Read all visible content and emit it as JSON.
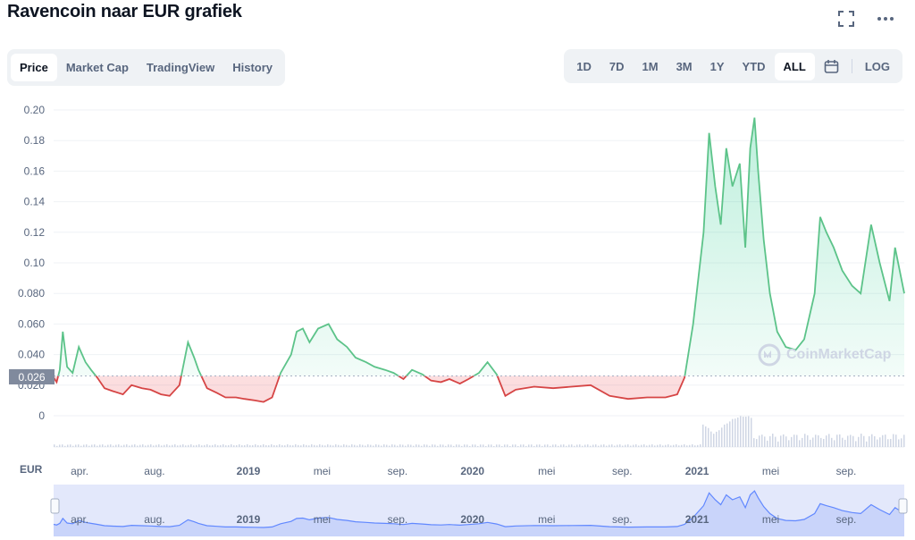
{
  "header": {
    "title": "Ravencoin naar EUR grafiek"
  },
  "icons": {
    "fullscreen": "fullscreen-icon",
    "more": "more-dots-icon",
    "calendar": "calendar-icon",
    "logo": "coinmarketcap-logo-icon"
  },
  "tabs": [
    "Price",
    "Market Cap",
    "TradingView",
    "History"
  ],
  "active_tab": "Price",
  "ranges": [
    "1D",
    "7D",
    "1M",
    "3M",
    "1Y",
    "YTD",
    "ALL"
  ],
  "active_range": "ALL",
  "log_label": "LOG",
  "currency_label": "EUR",
  "watermark_text": "CoinMarketCap",
  "current_price_tag": "0.026",
  "colors": {
    "up": "#16c784",
    "down": "#ea3943",
    "line_up": "#5cc389",
    "line_down": "#d64545",
    "grid": "#eff2f5",
    "axis_text": "#58667e",
    "nav_fill": "#e3e8fb",
    "nav_line": "#6188ff"
  },
  "chart_data": {
    "type": "line",
    "title": "",
    "xlabel": "",
    "ylabel": "",
    "ylim": [
      0,
      0.2
    ],
    "grid": true,
    "baseline": 0.026,
    "yticks": [
      0,
      0.02,
      0.04,
      0.06,
      0.08,
      0.1,
      0.12,
      0.14,
      0.16,
      0.18,
      0.2
    ],
    "ytick_labels": [
      "0",
      "0.020",
      "0.040",
      "0.060",
      "0.080",
      "0.10",
      "0.12",
      "0.14",
      "0.16",
      "0.18",
      "0.20"
    ],
    "xticks": [
      "apr.",
      "aug.",
      "2019",
      "mei",
      "sep.",
      "2020",
      "mei",
      "sep.",
      "2021",
      "mei",
      "sep."
    ],
    "xtick_dates": [
      "2018-04-01",
      "2018-08-01",
      "2019-01-01",
      "2019-05-01",
      "2019-09-01",
      "2020-01-01",
      "2020-05-01",
      "2020-09-01",
      "2021-01-01",
      "2021-05-01",
      "2021-09-01"
    ],
    "xlim": [
      "2018-03-10",
      "2021-12-25"
    ],
    "series": [
      {
        "dates": [
          "2018-03-10",
          "2018-03-15",
          "2018-03-20",
          "2018-03-25",
          "2018-04-01",
          "2018-04-10",
          "2018-04-20",
          "2018-05-01",
          "2018-05-10",
          "2018-05-20",
          "2018-06-01",
          "2018-06-15",
          "2018-07-01",
          "2018-07-15",
          "2018-08-01",
          "2018-08-15",
          "2018-09-01",
          "2018-09-15",
          "2018-10-01",
          "2018-10-15",
          "2018-10-25",
          "2018-11-01",
          "2018-11-15",
          "2018-12-01",
          "2018-12-15",
          "2019-01-01",
          "2019-01-15",
          "2019-02-01",
          "2019-02-15",
          "2019-03-01",
          "2019-03-15",
          "2019-04-01",
          "2019-04-10",
          "2019-04-20",
          "2019-05-01",
          "2019-05-15",
          "2019-06-01",
          "2019-06-15",
          "2019-07-01",
          "2019-07-15",
          "2019-08-01",
          "2019-08-15",
          "2019-09-01",
          "2019-09-15",
          "2019-10-01",
          "2019-10-15",
          "2019-11-01",
          "2019-11-15",
          "2019-12-01",
          "2019-12-15",
          "2020-01-01",
          "2020-01-15",
          "2020-02-01",
          "2020-02-15",
          "2020-03-01",
          "2020-03-15",
          "2020-04-01",
          "2020-05-01",
          "2020-06-01",
          "2020-07-01",
          "2020-08-01",
          "2020-09-01",
          "2020-10-01",
          "2020-11-01",
          "2020-12-01",
          "2020-12-20",
          "2021-01-01",
          "2021-01-15",
          "2021-02-01",
          "2021-02-10",
          "2021-02-20",
          "2021-03-01",
          "2021-03-10",
          "2021-03-20",
          "2021-04-01",
          "2021-04-10",
          "2021-04-18",
          "2021-04-25",
          "2021-05-01",
          "2021-05-10",
          "2021-05-20",
          "2021-06-01",
          "2021-06-15",
          "2021-07-01",
          "2021-07-15",
          "2021-08-01",
          "2021-08-10",
          "2021-08-20",
          "2021-09-01",
          "2021-09-15",
          "2021-10-01",
          "2021-10-15",
          "2021-11-01",
          "2021-11-15",
          "2021-12-01",
          "2021-12-10",
          "2021-12-25"
        ],
        "values": [
          0.025,
          0.022,
          0.03,
          0.055,
          0.032,
          0.028,
          0.045,
          0.035,
          0.03,
          0.025,
          0.018,
          0.016,
          0.014,
          0.02,
          0.018,
          0.017,
          0.014,
          0.013,
          0.02,
          0.048,
          0.038,
          0.03,
          0.018,
          0.015,
          0.012,
          0.012,
          0.011,
          0.01,
          0.009,
          0.012,
          0.028,
          0.04,
          0.055,
          0.057,
          0.048,
          0.057,
          0.06,
          0.05,
          0.045,
          0.038,
          0.035,
          0.032,
          0.03,
          0.028,
          0.024,
          0.03,
          0.027,
          0.023,
          0.022,
          0.024,
          0.021,
          0.024,
          0.028,
          0.035,
          0.027,
          0.013,
          0.017,
          0.019,
          0.018,
          0.019,
          0.02,
          0.013,
          0.011,
          0.012,
          0.012,
          0.014,
          0.025,
          0.06,
          0.12,
          0.185,
          0.15,
          0.125,
          0.175,
          0.15,
          0.165,
          0.11,
          0.175,
          0.195,
          0.16,
          0.115,
          0.08,
          0.055,
          0.045,
          0.043,
          0.05,
          0.08,
          0.13,
          0.12,
          0.11,
          0.095,
          0.085,
          0.08,
          0.125,
          0.1,
          0.075,
          0.11,
          0.08
        ]
      }
    ]
  }
}
